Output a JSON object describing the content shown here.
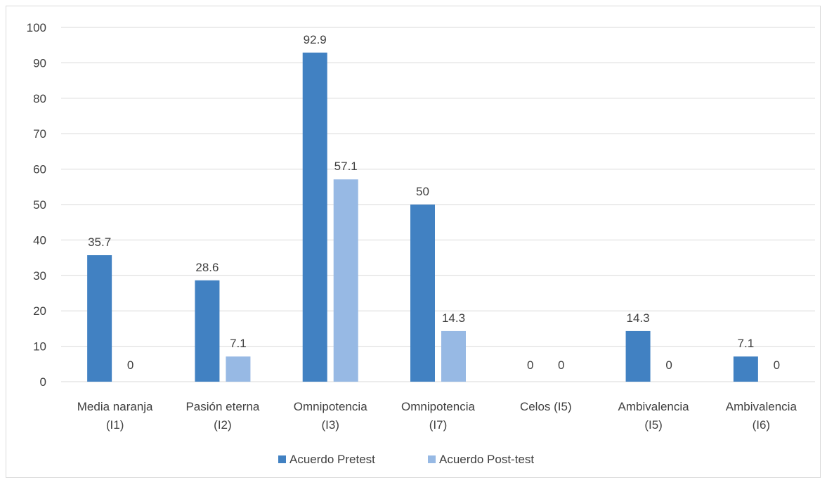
{
  "chart_data": {
    "type": "bar",
    "categories": [
      [
        "Media naranja",
        "(I1)"
      ],
      [
        "Pasión eterna",
        "(I2)"
      ],
      [
        "Omnipotencia",
        "(I3)"
      ],
      [
        "Omnipotencia",
        "(I7)"
      ],
      [
        "Celos (I5)"
      ],
      [
        "Ambivalencia",
        "(I5)"
      ],
      [
        "Ambivalencia",
        "(I6)"
      ]
    ],
    "series": [
      {
        "name": "Acuerdo Pretest",
        "color": "#4181c2",
        "values": [
          35.7,
          28.6,
          92.9,
          50,
          0,
          14.3,
          7.1
        ]
      },
      {
        "name": "Acuerdo  Post-test",
        "color": "#97b9e4",
        "values": [
          0,
          7.1,
          57.1,
          14.3,
          0,
          0,
          0
        ]
      }
    ],
    "ylim": [
      0,
      100
    ],
    "yticks": [
      0,
      10,
      20,
      30,
      40,
      50,
      60,
      70,
      80,
      90,
      100
    ],
    "gridlines": true,
    "gridline_color": "#d9d9d9",
    "data_labels": true,
    "legend_position": "bottom"
  }
}
